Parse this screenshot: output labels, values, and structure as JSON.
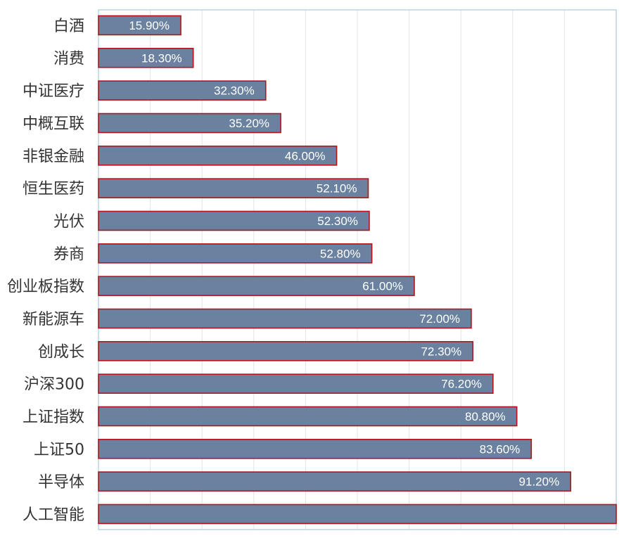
{
  "chart_data": {
    "type": "bar",
    "orientation": "horizontal",
    "title": "",
    "xlabel": "",
    "ylabel": "",
    "xlim": [
      0,
      100
    ],
    "grid": true,
    "legend": "none",
    "categories": [
      "白酒",
      "消费",
      "中证医疗",
      "中概互联",
      "非银金融",
      "恒生医药",
      "光伏",
      "券商",
      "创业板指数",
      "新能源车",
      "创成长",
      "沪深300",
      "上证指数",
      "上证50",
      "半导体",
      "人工智能"
    ],
    "values": [
      15.9,
      18.3,
      32.3,
      35.2,
      46.0,
      52.1,
      52.3,
      52.8,
      61.0,
      72.0,
      72.3,
      76.2,
      80.8,
      83.6,
      91.2,
      100.0
    ],
    "data_labels": [
      "15.90%",
      "18.30%",
      "32.30%",
      "35.20%",
      "46.00%",
      "52.10%",
      "52.30%",
      "52.80%",
      "61.00%",
      "72.00%",
      "72.30%",
      "76.20%",
      "80.80%",
      "83.60%",
      "91.20%",
      ""
    ],
    "colors": {
      "bar_fill": "#6a829f",
      "bar_border": "#b3141c",
      "grid": "#e3e3e3",
      "frame": "#bcd5e2"
    }
  }
}
